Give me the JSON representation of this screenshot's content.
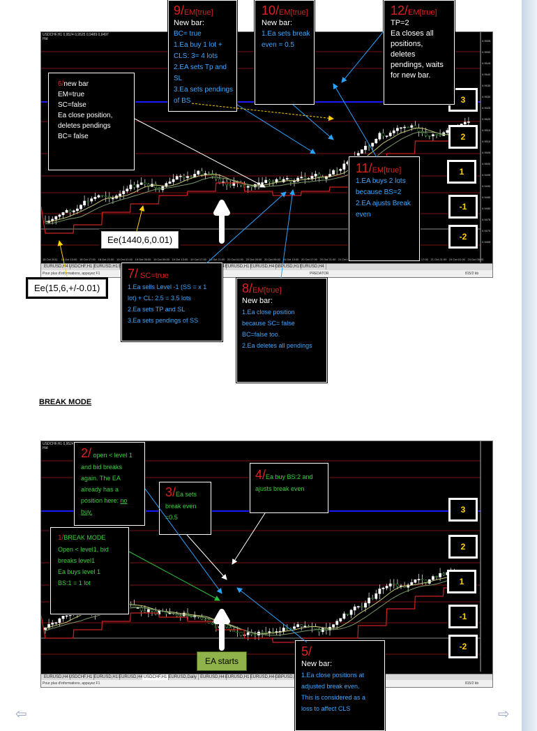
{
  "colors": {
    "chart_bg": "#000000",
    "red_label": "#e02020",
    "blue_text": "#3fa8ff",
    "green_text": "#3ecf3e",
    "level_text": "#ffd000",
    "ea_starts_bg": "#8fb24a"
  },
  "chart1": {
    "header": "USDCHF,H1 0,9524 0,9525 0,9489 0,9497",
    "header2": "Hid",
    "status_left": "Pour plus d'informations, appuyez F1",
    "status_mid": "PREDATOR",
    "status_right": "815/2 kb",
    "price_labels": [
      "0.9555",
      "0.9550",
      "0.9545",
      "0.9540",
      "0.9535",
      "0.9530",
      "0.9525",
      "0.9520",
      "0.9515",
      "0.9510",
      "0.9505",
      "0.9500",
      "0.9495",
      "0.9490",
      "0.9485",
      "0.9480",
      "0.9475",
      "0.9470",
      "0.9465"
    ],
    "time_labels": [
      "18 Oct 2011",
      "18 Oct 13:00",
      "18 Oct 17:00",
      "18 Oct 21:00",
      "19 Oct 01:00",
      "19 Oct 05:00",
      "19 Oct 09:00",
      "19 Oct 13:00",
      "19 Oct 17:00",
      "19 Oct 21:00",
      "20 Oct 01:00",
      "20 Oct 05:00",
      "20 Oct 09:00",
      "20 Oct 13:00",
      "20 Oct 17:00",
      "20 Oct 21:00",
      "21 Oct 01:00",
      "21 Oct 05:00",
      "21 Oct 09:00",
      "21 Oct 13:00",
      "21 Oct 17:00",
      "21 Oct 21:00",
      "24 Oct 01:00",
      "24 Oct 05:00"
    ],
    "tabs": [
      "EURUSD,H4",
      "USDCHF,H1",
      "EURUSD,H1",
      "EURUSD,H4",
      "USDCHF,H1",
      "EURUSD,Daily",
      "EURUSD,H4",
      "EURUSD,H1",
      "EURUSD,H4",
      "GBPUSD,H1",
      "EURUSD,H4"
    ]
  },
  "chart2": {
    "header": "USDCHF,H1 0,9524 0,9525 0,9489 0,9497",
    "header2": "Hid",
    "status_left": "Pour plus d'informations, appuyez F1",
    "status_right": "815/2 kb",
    "tabs": [
      "EURUSD,H4",
      "USDCHF,H1",
      "EURUSD,H1",
      "EURUSD,H4",
      "USDCHF,H1",
      "EURUSD,Daily",
      "EURUSD,H4",
      "EURUSD,H1",
      "EURUSD,H4",
      "GBPUSD,H1",
      "EURUSD,H4"
    ]
  },
  "levels": [
    "3",
    "2",
    "1",
    "-1",
    "-2"
  ],
  "top": {
    "box9": {
      "num": "9/",
      "em": "EM[true]",
      "title": "New bar:",
      "lines": [
        "BC= true",
        "1.Ea buy 1 lot +",
        "CLS: 3= 4 lots",
        "2.EA sets Tp and",
        "SL",
        "3.Ea sets pendings",
        "of BS"
      ]
    },
    "box10": {
      "num": "10/",
      "em": "EM[true]",
      "title": "New bar:",
      "lines": [
        "1.Ea sets break",
        "even = 0.5"
      ]
    },
    "box12": {
      "num": "12/",
      "em": "EM[true]",
      "lines": [
        "TP=2",
        "Ea closes all",
        "positions,",
        "deletes",
        "pendings,  waits",
        "for new  bar."
      ]
    },
    "box6": {
      "num": "6/",
      "title": "new bar",
      "lines": [
        "EM=true",
        "SC=false",
        "Ea close position,",
        "deletes pendings",
        "BC= false"
      ]
    },
    "box11": {
      "num": "11/",
      "em": "EM[true]",
      "lines": [
        "1.EA buys 2  lots",
        "because BS=2",
        "2.EA ajusts Break",
        "even"
      ]
    },
    "box7": {
      "num": "7/",
      "title": " SC=true",
      "lines": [
        "1.Ea sells Level -1 (SS = x 1",
        "lot) + CL: 2.5 =  3.5 lots",
        "2.Ea sets TP and SL",
        "3.Ea sets pendings of SS"
      ]
    },
    "box8": {
      "num": "8/",
      "em": "EM[true]",
      "title": "New bar:",
      "lines": [
        "1.Ea close position",
        "because  SC= false",
        "BC=false too.",
        "2.Ea deletes all pendings"
      ]
    },
    "ee1440": "Ee(1440,6,0.01)",
    "ee15": "Ee(15,6,+/-0.01)"
  },
  "section_heading": "BREAK MODE",
  "bottom": {
    "box2": {
      "num": "2/",
      "lines": [
        " open < level 1",
        "and bid breaks",
        "again. The EA",
        "already has a",
        "position here: ",
        "buy."
      ],
      "underlined": "no"
    },
    "box3": {
      "num": "3/",
      "lines": [
        "Ea sets",
        "break even",
        "=0.5"
      ]
    },
    "box4": {
      "num": "4/",
      "lines": [
        "Ea buy BS:2 and",
        "ajusts break even"
      ]
    },
    "box1": {
      "num": "1/",
      "title": "BREAK MODE",
      "lines": [
        "Open < level1, bid",
        "breaks level1",
        "Ea buys level 1",
        "BS:1 = 1 lot"
      ]
    },
    "box5": {
      "num": "5/",
      "title": "New bar:",
      "lines": [
        "1.Ea close positions  at",
        "adjusted break even.",
        "This is considered as a",
        "loss to affect CLS"
      ]
    },
    "ea_starts": "EA starts"
  },
  "nav": {
    "prev": "⇦",
    "next": "⇨"
  }
}
